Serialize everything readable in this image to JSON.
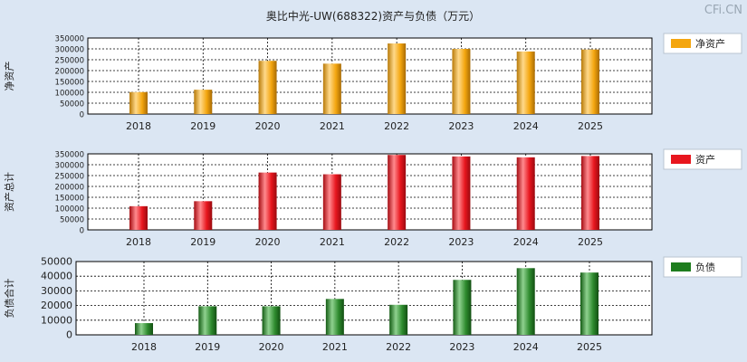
{
  "title": "奥比中光-UW(688322)资产与负债（万元）",
  "watermark": "CFi.CN",
  "colors": {
    "background": "#dbe6f3",
    "plot_background": "#ffffff",
    "legend_background": "#ffffff",
    "net_assets": "#f4a60f",
    "total_assets": "#e8161e",
    "liabilities": "#1e7d1e"
  },
  "chart_data": [
    {
      "type": "bar",
      "ylabel": "净资产",
      "legend": "净资产",
      "legend_position": "right",
      "grid": true,
      "categories": [
        "2018",
        "2019",
        "2020",
        "2021",
        "2022",
        "2023",
        "2024",
        "2025"
      ],
      "values": [
        101000,
        112000,
        245000,
        232000,
        325000,
        300000,
        288000,
        297000
      ],
      "ylim": [
        0,
        350000
      ],
      "yticks": [
        "350000",
        "300000",
        "250000",
        "200000",
        "150000",
        "100000",
        "50000",
        "0"
      ]
    },
    {
      "type": "bar",
      "ylabel": "资产总计",
      "legend": "资产",
      "legend_position": "right",
      "grid": true,
      "categories": [
        "2018",
        "2019",
        "2020",
        "2021",
        "2022",
        "2023",
        "2024",
        "2025"
      ],
      "values": [
        109000,
        132000,
        264000,
        256000,
        345000,
        338000,
        334000,
        340000
      ],
      "ylim": [
        0,
        350000
      ],
      "yticks": [
        "350000",
        "300000",
        "250000",
        "200000",
        "150000",
        "100000",
        "50000",
        "0"
      ]
    },
    {
      "type": "bar",
      "ylabel": "负债合计",
      "legend": "负债",
      "legend_position": "right",
      "grid": true,
      "categories": [
        "2018",
        "2019",
        "2020",
        "2021",
        "2022",
        "2023",
        "2024",
        "2025"
      ],
      "values": [
        8000,
        19500,
        19500,
        24500,
        20500,
        37500,
        45500,
        42500
      ],
      "ylim": [
        0,
        50000
      ],
      "yticks": [
        "50000",
        "40000",
        "30000",
        "20000",
        "10000",
        "0"
      ]
    }
  ]
}
